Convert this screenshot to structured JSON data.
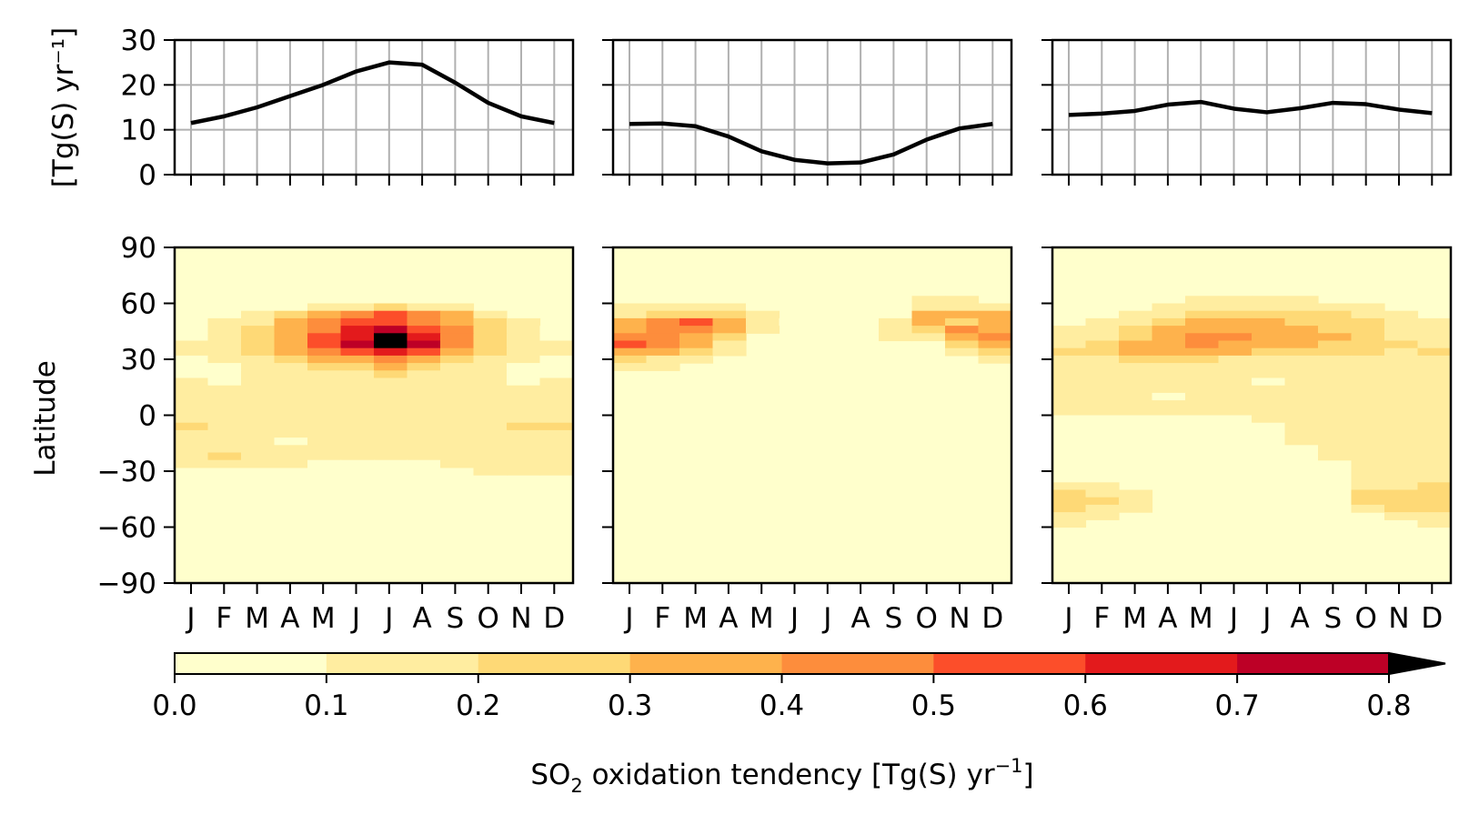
{
  "ylabel_top": "[Tg(S) yr⁻¹]",
  "ylabel_bottom": "Latitude",
  "colorbar": {
    "label_main": "SO",
    "label_sub": "2",
    "label_rest": " oxidation tendency [Tg(S) yr",
    "label_sup": "−1",
    "label_end": "]",
    "ticks": [
      "0.0",
      "0.1",
      "0.2",
      "0.3",
      "0.4",
      "0.5",
      "0.6",
      "0.7",
      "0.8"
    ]
  },
  "chart_data": {
    "months": [
      "J",
      "F",
      "M",
      "A",
      "M",
      "J",
      "J",
      "A",
      "S",
      "O",
      "N",
      "D"
    ],
    "top_yticks": [
      0,
      10,
      20,
      30
    ],
    "top_ylim": [
      0,
      30
    ],
    "lat_ticks": [
      90,
      60,
      30,
      0,
      -30,
      -60,
      -90
    ],
    "lat_tick_labels": [
      "90",
      "60",
      "30",
      "0",
      "−30",
      "−60",
      "−90"
    ],
    "lat_lim": [
      -90,
      90
    ],
    "grid": true,
    "colors": [
      "#ffffcc",
      "#ffeda0",
      "#fed976",
      "#feb24c",
      "#fd8d3c",
      "#fc4e2a",
      "#e31a1c",
      "#bd0026",
      "#800026",
      "#000000"
    ],
    "bounds": [
      0,
      0.1,
      0.2,
      0.3,
      0.4,
      0.5,
      0.6,
      0.7,
      0.8
    ],
    "panels": [
      {
        "type": "line",
        "values": [
          11.5,
          13,
          15,
          17.5,
          20,
          23,
          25,
          24.5,
          20.5,
          16,
          13,
          11.5
        ],
        "heatmap": {
          "type": "heatmap",
          "lats": [
            58,
            54,
            50,
            46,
            42,
            38,
            34,
            30,
            26,
            22,
            18,
            14,
            10,
            6,
            2,
            -2,
            -6,
            -10,
            -14,
            -18,
            -22,
            -26,
            -30
          ],
          "values": [
            [
              0,
              0,
              0,
              0.05,
              0.12,
              0.18,
              0.2,
              0.16,
              0.1,
              0,
              0,
              0
            ],
            [
              0,
              0,
              0.1,
              0.2,
              0.35,
              0.45,
              0.5,
              0.42,
              0.3,
              0.15,
              0,
              0
            ],
            [
              0,
              0.1,
              0.15,
              0.3,
              0.4,
              0.55,
              0.58,
              0.48,
              0.35,
              0.2,
              0.1,
              0
            ],
            [
              0.05,
              0.12,
              0.2,
              0.33,
              0.45,
              0.6,
              0.7,
              0.55,
              0.4,
              0.2,
              0.12,
              0.05
            ],
            [
              0.08,
              0.15,
              0.2,
              0.35,
              0.5,
              0.68,
              0.8,
              0.62,
              0.45,
              0.22,
              0.15,
              0.08
            ],
            [
              0.1,
              0.15,
              0.22,
              0.35,
              0.52,
              0.72,
              0.95,
              0.7,
              0.48,
              0.25,
              0.15,
              0.1
            ],
            [
              0.1,
              0.15,
              0.2,
              0.3,
              0.42,
              0.55,
              0.62,
              0.52,
              0.38,
              0.2,
              0.12,
              0.1
            ],
            [
              0.08,
              0.12,
              0.15,
              0.2,
              0.3,
              0.38,
              0.45,
              0.35,
              0.25,
              0.15,
              0.1,
              0.08
            ],
            [
              0.05,
              0.08,
              0.12,
              0.15,
              0.2,
              0.25,
              0.3,
              0.24,
              0.18,
              0.12,
              0.08,
              0.05
            ],
            [
              0.05,
              0.06,
              0.1,
              0.12,
              0.15,
              0.18,
              0.2,
              0.17,
              0.14,
              0.1,
              0.06,
              0.05
            ],
            [
              0.1,
              0.06,
              0.1,
              0.12,
              0.15,
              0.15,
              0.15,
              0.14,
              0.12,
              0.1,
              0.08,
              0.1
            ],
            [
              0.12,
              0.12,
              0.12,
              0.12,
              0.12,
              0.12,
              0.12,
              0.12,
              0.12,
              0.12,
              0.12,
              0.12
            ],
            [
              0.15,
              0.15,
              0.15,
              0.15,
              0.15,
              0.15,
              0.15,
              0.15,
              0.15,
              0.15,
              0.15,
              0.15
            ],
            [
              0.12,
              0.12,
              0.12,
              0.12,
              0.12,
              0.12,
              0.12,
              0.12,
              0.12,
              0.12,
              0.12,
              0.12
            ],
            [
              0.1,
              0.1,
              0.1,
              0.1,
              0.1,
              0.1,
              0.1,
              0.1,
              0.1,
              0.1,
              0.1,
              0.1
            ],
            [
              0.12,
              0.12,
              0.12,
              0.12,
              0.12,
              0.12,
              0.12,
              0.12,
              0.12,
              0.12,
              0.12,
              0.12
            ],
            [
              0.25,
              0.15,
              0.12,
              0.12,
              0.12,
              0.12,
              0.12,
              0.12,
              0.12,
              0.12,
              0.25,
              0.25
            ],
            [
              0.12,
              0.12,
              0.12,
              0.12,
              0.12,
              0.12,
              0.12,
              0.12,
              0.12,
              0.12,
              0.12,
              0.12
            ],
            [
              0.1,
              0.1,
              0.1,
              0.05,
              0.1,
              0.1,
              0.1,
              0.1,
              0.1,
              0.1,
              0.1,
              0.1
            ],
            [
              0.12,
              0.12,
              0.12,
              0.12,
              0.12,
              0.12,
              0.12,
              0.12,
              0.12,
              0.12,
              0.12,
              0.12
            ],
            [
              0.12,
              0.2,
              0.12,
              0.12,
              0.12,
              0.12,
              0.12,
              0.12,
              0.12,
              0.12,
              0.12,
              0.12
            ],
            [
              0.12,
              0.12,
              0.12,
              0.12,
              0.05,
              0.05,
              0.05,
              0.05,
              0.12,
              0.12,
              0.12,
              0.12
            ],
            [
              0,
              0,
              0,
              0,
              0,
              0,
              0,
              0,
              0,
              0.12,
              0.12,
              0.12
            ]
          ]
        }
      },
      {
        "type": "line",
        "values": [
          11.3,
          11.4,
          10.8,
          8.5,
          5.2,
          3.3,
          2.5,
          2.7,
          4.5,
          7.8,
          10.3,
          11.3
        ],
        "heatmap": {
          "type": "heatmap",
          "lats": [
            62,
            58,
            54,
            50,
            46,
            42,
            38,
            34,
            30,
            26
          ],
          "values": [
            [
              0,
              0,
              0,
              0,
              0,
              0,
              0,
              0,
              0,
              0.1,
              0.1,
              0
            ],
            [
              0.1,
              0.12,
              0.12,
              0.1,
              0.05,
              0,
              0,
              0,
              0,
              0.12,
              0.15,
              0.12
            ],
            [
              0.15,
              0.2,
              0.25,
              0.2,
              0.12,
              0,
              0,
              0,
              0,
              0.35,
              0.3,
              0.35
            ],
            [
              0.32,
              0.4,
              0.55,
              0.35,
              0.1,
              0.05,
              0,
              0,
              0.1,
              0.3,
              0.28,
              0.32
            ],
            [
              0.35,
              0.48,
              0.45,
              0.3,
              0.12,
              0,
              0,
              0,
              0.1,
              0.2,
              0.42,
              0.38
            ],
            [
              0.4,
              0.42,
              0.38,
              0.25,
              0,
              0,
              0,
              0,
              0.1,
              0.12,
              0.35,
              0.42
            ],
            [
              0.55,
              0.42,
              0.35,
              0.15,
              0,
              0,
              0,
              0,
              0,
              0,
              0.2,
              0.38
            ],
            [
              0.35,
              0.32,
              0.22,
              0.12,
              0,
              0,
              0,
              0,
              0,
              0,
              0.1,
              0.25
            ],
            [
              0.2,
              0.18,
              0.12,
              0,
              0,
              0,
              0,
              0,
              0,
              0,
              0,
              0.12
            ],
            [
              0.12,
              0.1,
              0,
              0,
              0,
              0,
              0,
              0,
              0,
              0,
              0,
              0
            ]
          ]
        }
      },
      {
        "type": "line",
        "values": [
          13.3,
          13.6,
          14.2,
          15.6,
          16.2,
          14.7,
          13.9,
          14.8,
          16,
          15.7,
          14.5,
          13.7
        ],
        "heatmap": {
          "type": "heatmap",
          "lats": [
            62,
            58,
            54,
            50,
            46,
            42,
            38,
            34,
            30,
            26,
            22,
            18,
            14,
            10,
            6,
            2,
            -2,
            -6,
            -10,
            -14,
            -18,
            -22,
            -26,
            -30,
            -34,
            -38,
            -42,
            -46,
            -50,
            -54,
            -58
          ],
          "values": [
            [
              0,
              0,
              0,
              0,
              0.1,
              0.1,
              0.1,
              0.1,
              0,
              0,
              0,
              0
            ],
            [
              0,
              0,
              0,
              0.1,
              0.12,
              0.15,
              0.15,
              0.12,
              0.12,
              0.1,
              0,
              0
            ],
            [
              0,
              0,
              0.1,
              0.15,
              0.2,
              0.25,
              0.25,
              0.22,
              0.2,
              0.15,
              0.1,
              0
            ],
            [
              0,
              0.1,
              0.15,
              0.22,
              0.3,
              0.32,
              0.3,
              0.28,
              0.25,
              0.2,
              0.12,
              0.1
            ],
            [
              0.1,
              0.12,
              0.2,
              0.3,
              0.38,
              0.35,
              0.32,
              0.3,
              0.28,
              0.22,
              0.15,
              0.12
            ],
            [
              0.12,
              0.15,
              0.25,
              0.38,
              0.42,
              0.45,
              0.35,
              0.32,
              0.3,
              0.22,
              0.18,
              0.15
            ],
            [
              0.15,
              0.2,
              0.3,
              0.35,
              0.42,
              0.38,
              0.32,
              0.3,
              0.28,
              0.2,
              0.2,
              0.15
            ],
            [
              0.2,
              0.2,
              0.3,
              0.32,
              0.35,
              0.3,
              0.28,
              0.25,
              0.22,
              0.2,
              0.18,
              0.2
            ],
            [
              0.18,
              0.15,
              0.2,
              0.2,
              0.2,
              0.18,
              0.18,
              0.18,
              0.15,
              0.15,
              0.15,
              0.18
            ],
            [
              0.12,
              0.12,
              0.12,
              0.12,
              0.12,
              0.12,
              0.12,
              0.12,
              0.12,
              0.12,
              0.12,
              0.12
            ],
            [
              0.12,
              0.12,
              0.12,
              0.12,
              0.12,
              0.12,
              0.12,
              0.12,
              0.12,
              0.12,
              0.12,
              0.12
            ],
            [
              0.12,
              0.12,
              0.12,
              0.12,
              0.12,
              0.12,
              0.05,
              0.12,
              0.12,
              0.12,
              0.12,
              0.12
            ],
            [
              0.12,
              0.12,
              0.12,
              0.12,
              0.12,
              0.12,
              0.12,
              0.12,
              0.12,
              0.12,
              0.12,
              0.12
            ],
            [
              0.12,
              0.12,
              0.12,
              0.05,
              0.12,
              0.12,
              0.12,
              0.12,
              0.12,
              0.12,
              0.12,
              0.12
            ],
            [
              0.12,
              0.12,
              0.12,
              0.12,
              0.12,
              0.12,
              0.12,
              0.12,
              0.12,
              0.12,
              0.12,
              0.12
            ],
            [
              0.12,
              0.12,
              0.12,
              0.12,
              0.12,
              0.12,
              0.12,
              0.12,
              0.12,
              0.12,
              0.12,
              0.12
            ],
            [
              0.05,
              0.05,
              0.05,
              0.05,
              0.05,
              0.05,
              0.12,
              0.12,
              0.12,
              0.12,
              0.12,
              0.12
            ],
            [
              0,
              0,
              0,
              0,
              0,
              0.05,
              0.05,
              0.12,
              0.12,
              0.12,
              0.12,
              0.12
            ],
            [
              0,
              0,
              0,
              0,
              0,
              0,
              0,
              0.12,
              0.12,
              0.12,
              0.12,
              0.12
            ],
            [
              0,
              0,
              0,
              0,
              0,
              0,
              0,
              0.12,
              0.12,
              0.12,
              0.12,
              0.12
            ],
            [
              0,
              0,
              0,
              0,
              0,
              0,
              0,
              0.05,
              0.12,
              0.12,
              0.12,
              0.12
            ],
            [
              0,
              0,
              0,
              0,
              0,
              0,
              0,
              0,
              0.12,
              0.12,
              0.12,
              0.12
            ],
            [
              0,
              0,
              0,
              0,
              0,
              0,
              0,
              0,
              0,
              0.12,
              0.12,
              0.12
            ],
            [
              0,
              0,
              0,
              0,
              0,
              0,
              0,
              0,
              0,
              0.12,
              0.12,
              0.12
            ],
            [
              0,
              0,
              0,
              0,
              0,
              0,
              0,
              0,
              0,
              0.12,
              0.12,
              0.12
            ],
            [
              0.12,
              0.12,
              0,
              0,
              0,
              0,
              0,
              0,
              0,
              0.15,
              0.15,
              0.2
            ],
            [
              0.2,
              0.15,
              0.1,
              0,
              0,
              0,
              0,
              0,
              0,
              0.2,
              0.2,
              0.22
            ],
            [
              0.22,
              0.2,
              0.12,
              0,
              0,
              0,
              0,
              0,
              0,
              0.2,
              0.22,
              0.22
            ],
            [
              0.2,
              0.15,
              0.12,
              0,
              0,
              0,
              0,
              0,
              0,
              0.12,
              0.2,
              0.22
            ],
            [
              0.12,
              0.12,
              0,
              0,
              0,
              0,
              0,
              0,
              0,
              0,
              0.12,
              0.15
            ],
            [
              0.1,
              0,
              0,
              0,
              0,
              0,
              0,
              0,
              0,
              0,
              0,
              0.1
            ]
          ]
        }
      }
    ]
  }
}
